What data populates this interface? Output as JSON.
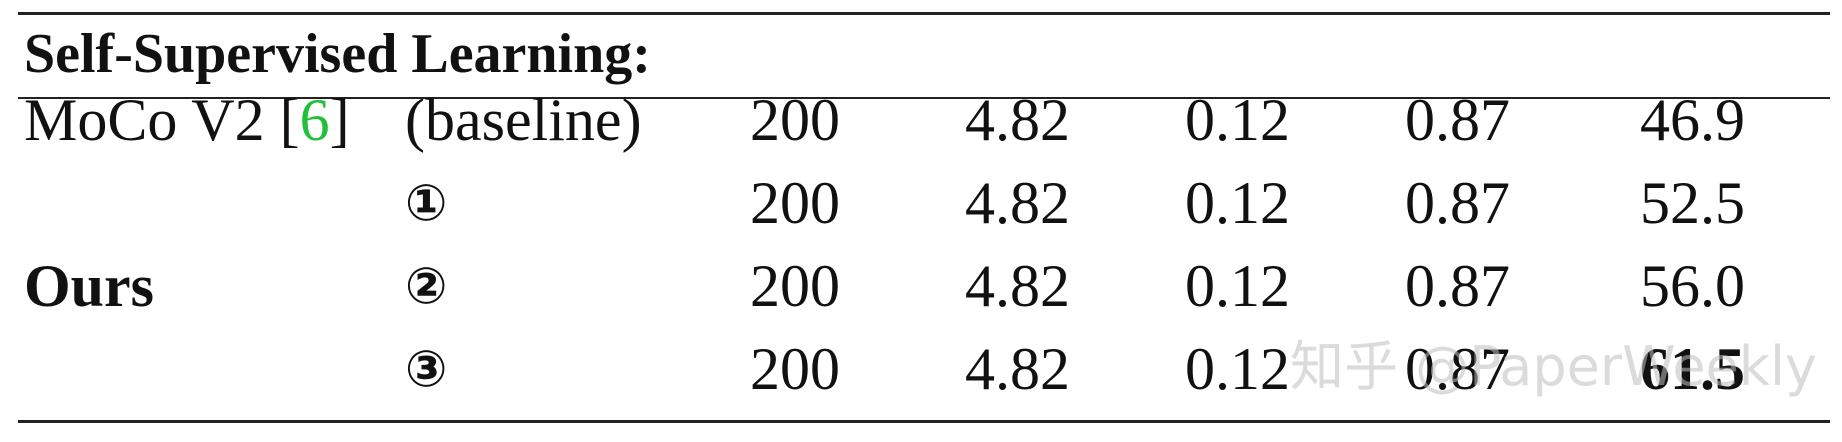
{
  "table": {
    "section_title": "Self-Supervised Learning:",
    "rows": [
      {
        "method_prefix": "MoCo V2 [",
        "method_ref": "6",
        "method_suffix": "]",
        "variant": "(baseline)",
        "values": [
          "200",
          "4.82",
          "0.12",
          "0.87",
          "46.9"
        ]
      },
      {
        "method": "",
        "variant": "①",
        "values": [
          "200",
          "4.82",
          "0.12",
          "0.87",
          "52.5"
        ]
      },
      {
        "method": "Ours",
        "variant": "②",
        "values": [
          "200",
          "4.82",
          "0.12",
          "0.87",
          "56.0"
        ]
      },
      {
        "method": "",
        "variant": "③",
        "values": [
          "200",
          "4.82",
          "0.12",
          "0.87",
          "61.5"
        ]
      }
    ]
  },
  "watermark": "知乎 @PaperWeekly",
  "colors": {
    "reference_link": "#22c03a",
    "text": "#111111",
    "rule": "#222222"
  }
}
